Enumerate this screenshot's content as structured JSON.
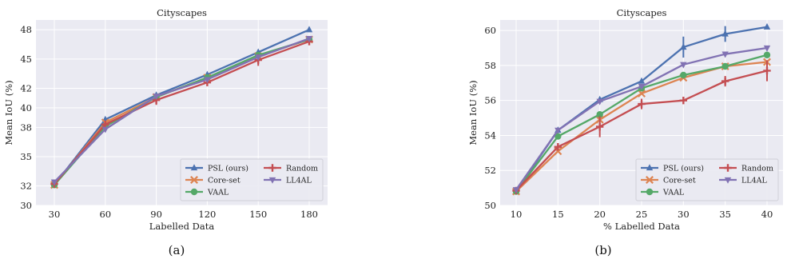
{
  "chart_data": [
    {
      "type": "line",
      "title": "Cityscapes",
      "xlabel": "Labelled Data",
      "ylabel": "Mean IoU (%)",
      "x": [
        30,
        60,
        90,
        120,
        150,
        180
      ],
      "xticks": [
        "30",
        "60",
        "90",
        "120",
        "150",
        "180"
      ],
      "yticks": [
        "30",
        "32",
        "35",
        "38",
        "40",
        "42",
        "45",
        "48"
      ],
      "ylim": [
        30,
        49
      ],
      "grid": true,
      "legend_position": "bottom-right",
      "series": [
        {
          "name": "PSL (ours)",
          "color": "#4c72b0",
          "marker": "triangle-up",
          "values": [
            32.1,
            38.8,
            41.3,
            43.4,
            45.7,
            48.0
          ],
          "err": [
            0,
            0,
            0,
            0,
            0,
            0
          ]
        },
        {
          "name": "Core-set",
          "color": "#dd8452",
          "marker": "x",
          "values": [
            32.1,
            38.5,
            41.1,
            43.1,
            45.3,
            47.0
          ],
          "err": [
            0,
            0,
            0,
            0,
            0,
            0
          ]
        },
        {
          "name": "VAAL",
          "color": "#55a868",
          "marker": "circle",
          "values": [
            32.1,
            38.1,
            41.1,
            43.1,
            45.4,
            47.0
          ],
          "err": [
            0,
            0,
            0,
            0,
            0,
            0
          ]
        },
        {
          "name": "Random",
          "color": "#c44e52",
          "marker": "plus",
          "values": [
            32.2,
            38.3,
            40.8,
            42.6,
            44.9,
            46.8
          ],
          "err": [
            0.4,
            0.2,
            0.5,
            0.3,
            0.6,
            0.3
          ]
        },
        {
          "name": "LL4AL",
          "color": "#8172b3",
          "marker": "triangle-down",
          "values": [
            32.4,
            37.8,
            41.2,
            42.9,
            45.2,
            47.1
          ],
          "err": [
            0,
            0,
            0,
            0,
            0,
            0
          ]
        }
      ],
      "caption": "(a)"
    },
    {
      "type": "line",
      "title": "Cityscapes",
      "xlabel": "% Labelled Data",
      "ylabel": "Mean IoU (%)",
      "x": [
        10,
        15,
        20,
        25,
        30,
        35,
        40
      ],
      "xticks": [
        "10",
        "15",
        "20",
        "25",
        "30",
        "35",
        "40"
      ],
      "yticks": [
        "50",
        "52",
        "54",
        "56",
        "58",
        "60"
      ],
      "ylim": [
        50,
        60.6
      ],
      "grid": true,
      "legend_position": "bottom-right",
      "series": [
        {
          "name": "PSL (ours)",
          "color": "#4c72b0",
          "marker": "triangle-up",
          "values": [
            50.8,
            54.3,
            56.05,
            57.1,
            59.05,
            59.8,
            60.2
          ],
          "err": [
            0,
            0,
            0,
            0,
            0.6,
            0.45,
            0
          ]
        },
        {
          "name": "Core-set",
          "color": "#dd8452",
          "marker": "x",
          "values": [
            50.8,
            53.1,
            54.9,
            56.4,
            57.3,
            57.95,
            58.2
          ],
          "err": [
            0,
            0,
            0,
            0,
            0,
            0,
            0
          ]
        },
        {
          "name": "VAAL",
          "color": "#55a868",
          "marker": "circle",
          "values": [
            50.8,
            53.95,
            55.2,
            56.7,
            57.45,
            57.95,
            58.6
          ],
          "err": [
            0,
            0,
            0,
            0,
            0,
            0,
            0
          ]
        },
        {
          "name": "Random",
          "color": "#c44e52",
          "marker": "plus",
          "values": [
            50.85,
            53.35,
            54.5,
            55.8,
            56.0,
            57.1,
            57.7
          ],
          "err": [
            0,
            0,
            0.6,
            0.3,
            0,
            0.3,
            0.6
          ]
        },
        {
          "name": "LL4AL",
          "color": "#8172b3",
          "marker": "triangle-down",
          "values": [
            50.9,
            54.3,
            55.95,
            56.8,
            58.05,
            58.65,
            59.0
          ],
          "err": [
            0,
            0,
            0,
            0,
            0,
            0,
            0
          ]
        }
      ],
      "caption": "(b)"
    }
  ]
}
